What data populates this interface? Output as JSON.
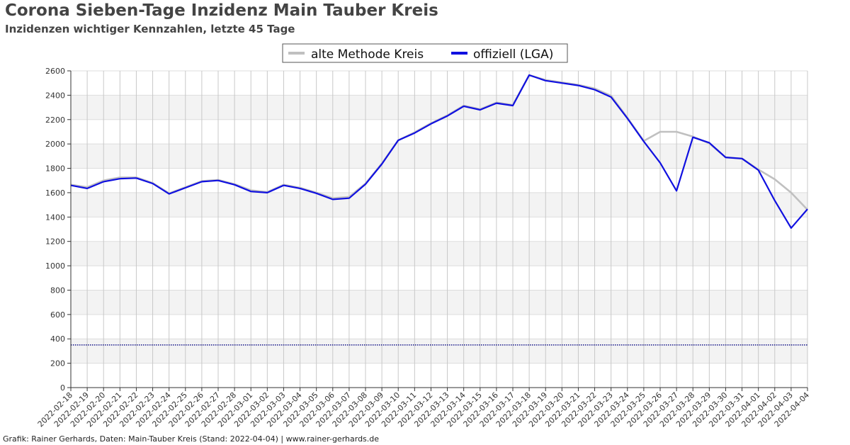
{
  "header": {
    "title": "Corona Sieben-Tage Inzidenz Main Tauber Kreis",
    "subtitle": "Inzidenzen wichtiger Kennzahlen, letzte 45 Tage"
  },
  "footer": {
    "text": "Grafik: Rainer Gerhards, Daten: Main-Tauber Kreis (Stand: 2022-04-04) | www.rainer-gerhards.de"
  },
  "chart_data": {
    "type": "line",
    "title": "Corona Sieben-Tage Inzidenz Main Tauber Kreis",
    "subtitle": "Inzidenzen wichtiger Kennzahlen, letzte 45 Tage",
    "xlabel": "",
    "ylabel": "",
    "ylim": [
      0,
      2600
    ],
    "yticks": [
      0,
      200,
      400,
      600,
      800,
      1000,
      1200,
      1400,
      1600,
      1800,
      2000,
      2200,
      2400,
      2600
    ],
    "grid": true,
    "legend_position": "top-center",
    "x": [
      "2022-02-18",
      "2022-02-19",
      "2022-02-20",
      "2022-02-21",
      "2022-02-22",
      "2022-02-23",
      "2022-02-24",
      "2022-02-25",
      "2022-02-26",
      "2022-02-27",
      "2022-02-28",
      "2022-03-01",
      "2022-03-02",
      "2022-03-03",
      "2022-03-04",
      "2022-03-05",
      "2022-03-06",
      "2022-03-07",
      "2022-03-08",
      "2022-03-09",
      "2022-03-10",
      "2022-03-11",
      "2022-03-12",
      "2022-03-13",
      "2022-03-14",
      "2022-03-15",
      "2022-03-16",
      "2022-03-17",
      "2022-03-18",
      "2022-03-19",
      "2022-03-20",
      "2022-03-21",
      "2022-03-22",
      "2022-03-23",
      "2022-03-24",
      "2022-03-25",
      "2022-03-26",
      "2022-03-27",
      "2022-03-28",
      "2022-03-29",
      "2022-03-30",
      "2022-03-31",
      "2022-04-01",
      "2022-04-02",
      "2022-04-03",
      "2022-04-04"
    ],
    "series": [
      {
        "name": "alte Methode Kreis",
        "color": "#c0c0c0",
        "values": [
          1665,
          1645,
          1700,
          1725,
          1725,
          1680,
          1595,
          1645,
          1695,
          1705,
          1670,
          1620,
          1605,
          1665,
          1640,
          1600,
          1555,
          1565,
          1675,
          1840,
          2030,
          2095,
          2170,
          2235,
          2315,
          2285,
          2340,
          2320,
          2565,
          2525,
          2505,
          2485,
          2455,
          2395,
          2215,
          2025,
          2100,
          2100,
          2060,
          2005,
          1890,
          1880,
          1790,
          1710,
          1600,
          1460
        ]
      },
      {
        "name": "offiziell (LGA)",
        "color": "#1010e0",
        "values": [
          1660,
          1635,
          1690,
          1715,
          1720,
          1675,
          1590,
          1640,
          1690,
          1700,
          1665,
          1610,
          1600,
          1660,
          1635,
          1595,
          1545,
          1555,
          1670,
          1835,
          2030,
          2090,
          2165,
          2230,
          2310,
          2280,
          2335,
          2315,
          2565,
          2520,
          2500,
          2480,
          2445,
          2385,
          2210,
          2020,
          1845,
          1615,
          2055,
          2010,
          1890,
          1880,
          1785,
          1535,
          1310,
          1465
        ]
      }
    ],
    "reference_line": {
      "value": 350,
      "color": "#000080",
      "style": "dotted"
    }
  }
}
